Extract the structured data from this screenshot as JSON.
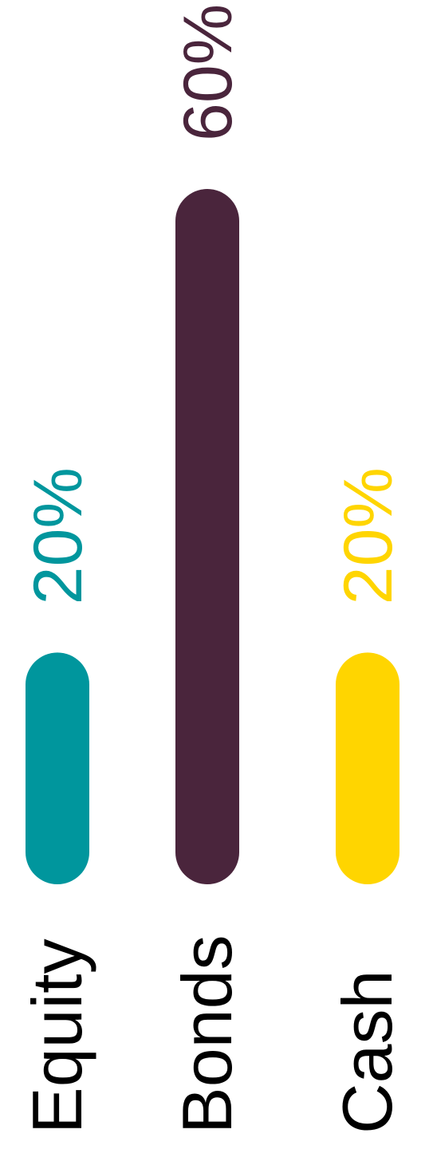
{
  "chart_data": {
    "type": "bar",
    "orientation": "vertical-rotated",
    "categories": [
      "Equity",
      "Bonds",
      "Cash"
    ],
    "values": [
      20,
      60,
      20
    ],
    "value_labels": [
      "20%",
      "60%",
      "20%"
    ],
    "colors": [
      "#00969d",
      "#4a253c",
      "#ffd500"
    ],
    "ylim": [
      0,
      60
    ],
    "grid": false,
    "legend": "none"
  }
}
